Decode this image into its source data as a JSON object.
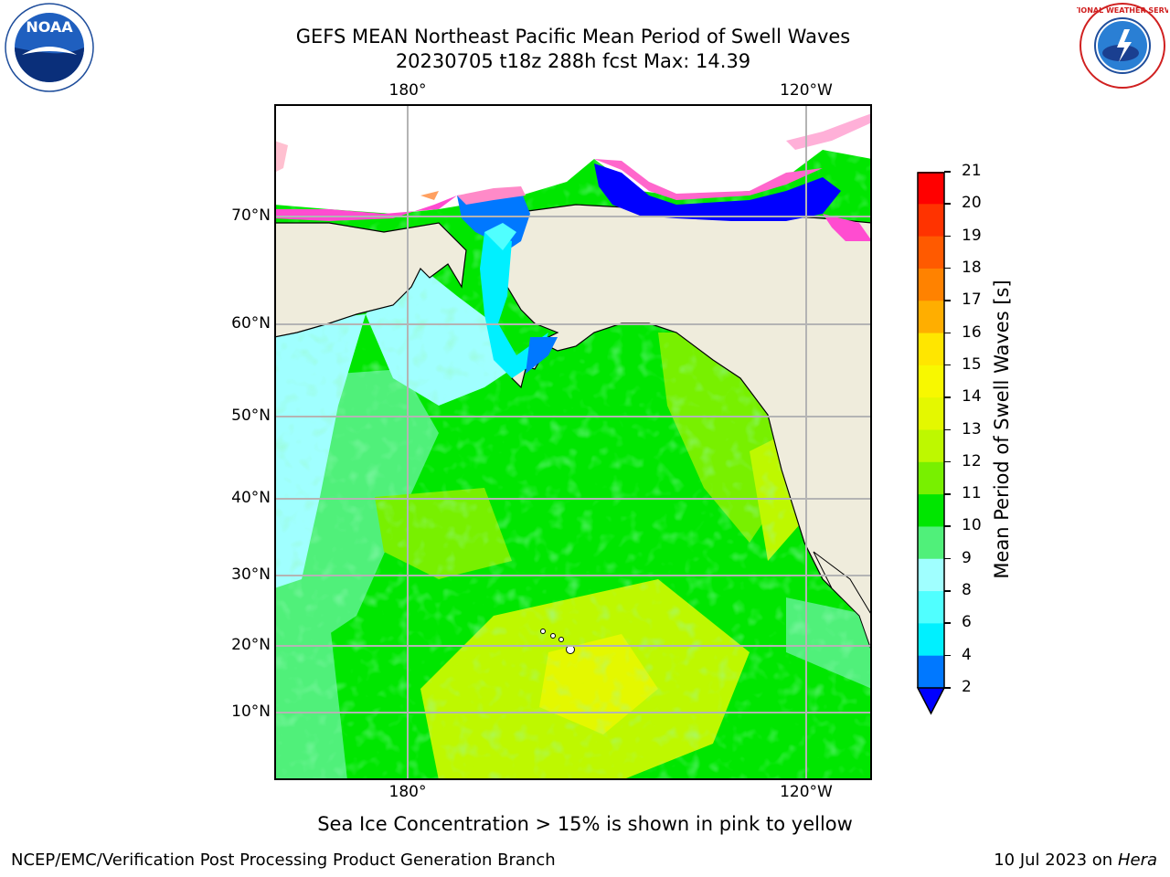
{
  "title": {
    "line1": "GEFS MEAN Northeast Pacific Mean Period of Swell Waves",
    "line2": "20230705 t18z 288h fcst   Max: 14.39"
  },
  "logos": {
    "left": {
      "name": "noaa-logo",
      "text": "NOAA"
    },
    "right": {
      "name": "nws-logo",
      "text": "NATIONAL WEATHER SERVICE"
    }
  },
  "map": {
    "lon_top": [
      "180°",
      "120°W"
    ],
    "lon_bottom": [
      "180°",
      "120°W"
    ],
    "lat_labels": [
      "70°N",
      "60°N",
      "50°N",
      "40°N",
      "30°N",
      "20°N",
      "10°N"
    ],
    "land_color": "#efecdc",
    "grid_color": "#b4b4b4"
  },
  "colorbar": {
    "label": "Mean Period of Swell Waves [s]",
    "ticks": [
      "21",
      "20",
      "19",
      "18",
      "17",
      "16",
      "15",
      "14",
      "13",
      "12",
      "11",
      "10",
      "9",
      "8",
      "6",
      "4",
      "2"
    ],
    "colors_top_to_bottom": [
      "#ff0000",
      "#ff3300",
      "#ff5a00",
      "#ff8200",
      "#ffae00",
      "#ffe600",
      "#f8f800",
      "#e4f800",
      "#bef800",
      "#78f000",
      "#00e600",
      "#50f07a",
      "#a0ffff",
      "#50ffff",
      "#00f0ff",
      "#0078ff"
    ],
    "extend_color": "#0000ff"
  },
  "note": "Sea Ice Concentration > 15% is shown in pink to yellow",
  "footer": {
    "left": "NCEP/EMC/Verification Post Processing Product Generation Branch",
    "right_date": "10 Jul 2023 on ",
    "right_host": "Hera"
  }
}
